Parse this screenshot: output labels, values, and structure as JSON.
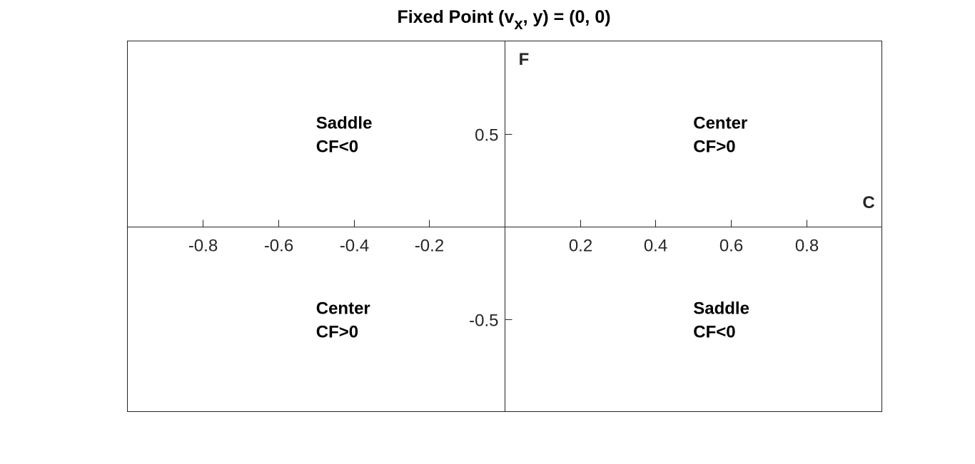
{
  "chart_data": {
    "type": "scatter",
    "title": {
      "prefix": "Fixed Point (v",
      "subscript": "x",
      "suffix": ", y) = (0, 0)"
    },
    "xlabel": "C",
    "ylabel": "F",
    "xlim": [
      -1,
      1
    ],
    "ylim": [
      -1,
      1
    ],
    "axis_location": "origin",
    "box": true,
    "grid": false,
    "xticks": [
      -0.8,
      -0.6,
      -0.4,
      -0.2,
      0.2,
      0.4,
      0.6,
      0.8
    ],
    "xtick_labels": [
      "-0.8",
      "-0.6",
      "-0.4",
      "-0.2",
      "0.2",
      "0.4",
      "0.6",
      "0.8"
    ],
    "yticks": [
      -0.5,
      0.5
    ],
    "ytick_labels": [
      "-0.5",
      "0.5"
    ],
    "annotations": [
      {
        "x": -0.5,
        "y": 0.5,
        "lines": [
          "Saddle",
          "CF<0"
        ]
      },
      {
        "x": 0.5,
        "y": 0.5,
        "lines": [
          "Center",
          "CF>0"
        ]
      },
      {
        "x": -0.5,
        "y": -0.5,
        "lines": [
          "Center",
          "CF>0"
        ]
      },
      {
        "x": 0.5,
        "y": -0.5,
        "lines": [
          "Saddle",
          "CF<0"
        ]
      }
    ],
    "colors": {
      "axis": "#262626",
      "text": "#000000",
      "background": "#ffffff"
    }
  }
}
